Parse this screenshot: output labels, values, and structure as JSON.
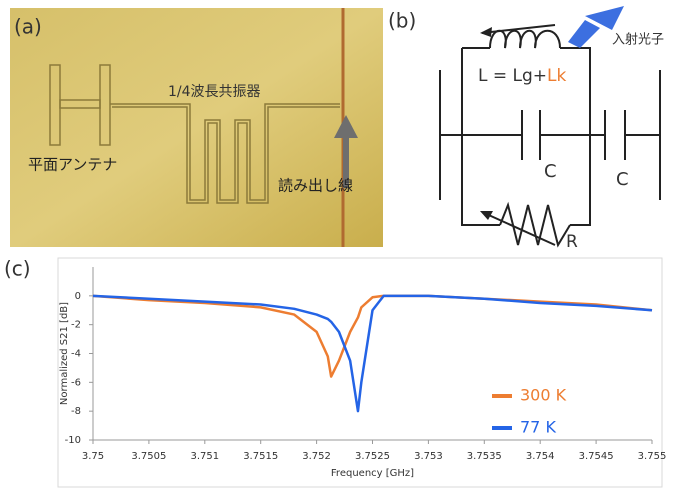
{
  "panel_a": {
    "label": "(a)",
    "resonator_label": "1/4波長共振器",
    "antenna_label": "平面アンテナ",
    "readout_label": "読み出し線"
  },
  "panel_b": {
    "label": "(b)",
    "photon_label": "入射光子",
    "inductor_label": "L = Lg+",
    "inductor_kinetic_label": "Lk",
    "capacitor_label_1": "C",
    "capacitor_label_2": "C",
    "resistor_label": "R"
  },
  "panel_c": {
    "label": "(c)"
  },
  "chart_data": {
    "type": "line",
    "x_label": "Frequency [GHz]",
    "y_label": "Normalized S21 [dB]",
    "x": [
      3.75,
      3.7505,
      3.751,
      3.7515,
      3.7518,
      3.752,
      3.7521,
      3.75213,
      3.7522,
      3.7523,
      3.75237,
      3.7524,
      3.7525,
      3.7526,
      3.753,
      3.7535,
      3.754,
      3.7545,
      3.755
    ],
    "series": [
      {
        "name": "300 K",
        "color": "#ed7d31",
        "values": [
          0,
          -0.3,
          -0.5,
          -0.8,
          -1.3,
          -2.5,
          -4.2,
          -5.6,
          -4.5,
          -2.5,
          -1.5,
          -0.8,
          -0.1,
          0,
          0,
          -0.2,
          -0.4,
          -0.6,
          -1.0
        ]
      },
      {
        "name": "77 K",
        "color": "#2464e6",
        "values": [
          0,
          -0.2,
          -0.4,
          -0.6,
          -0.9,
          -1.3,
          -1.6,
          -1.8,
          -2.5,
          -4.5,
          -8,
          -6,
          -1,
          0,
          0,
          -0.2,
          -0.5,
          -0.7,
          -1.0
        ]
      }
    ],
    "xlim": [
      3.75,
      3.755
    ],
    "xticks": [
      3.75,
      3.7505,
      3.751,
      3.7515,
      3.752,
      3.7525,
      3.753,
      3.7535,
      3.754,
      3.7545,
      3.755
    ],
    "ylim": [
      -10,
      2
    ],
    "yticks": [
      0,
      -2,
      -4,
      -6,
      -8,
      -10
    ],
    "grid": false
  }
}
